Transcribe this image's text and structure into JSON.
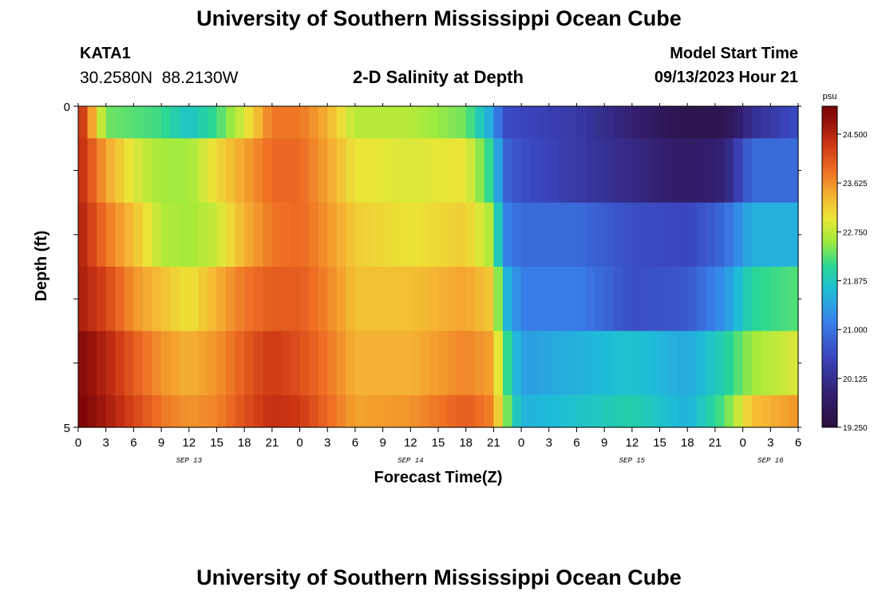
{
  "header": {
    "title": "University of Southern Mississippi Ocean Cube",
    "station_id": "KATA1",
    "station_coords": "30.2580N  88.2130W",
    "plot_title": "2-D Salinity at Depth",
    "model_start_label": "Model Start Time",
    "model_start_value": "09/13/2023 Hour 21"
  },
  "footer": {
    "title": "University of Southern Mississippi Ocean Cube"
  },
  "chart_data": {
    "type": "heatmap",
    "title": "2-D Salinity at Depth",
    "xlabel": "Forecast Time(Z)",
    "ylabel": "Depth (ft)",
    "x_tick_labels": [
      "0",
      "3",
      "6",
      "9",
      "12",
      "15",
      "18",
      "21",
      "0",
      "3",
      "6",
      "9",
      "12",
      "15",
      "18",
      "21",
      "0",
      "3",
      "6",
      "9",
      "12",
      "15",
      "18",
      "21",
      "0",
      "3",
      "6"
    ],
    "date_labels": [
      {
        "label": "SEP 13",
        "tick_index": 4
      },
      {
        "label": "SEP 14",
        "tick_index": 12
      },
      {
        "label": "SEP 15",
        "tick_index": 20
      },
      {
        "label": "SEP 16",
        "tick_index": 25
      }
    ],
    "x_range_hours": [
      0,
      78
    ],
    "y_tick_labels": [
      "0",
      "",
      "",
      "",
      "",
      "5"
    ],
    "y_range_ft": [
      0,
      5
    ],
    "colorbar": {
      "unit": "psu",
      "min": 19.25,
      "max": 25.0,
      "ticks": [
        "24.500",
        "23.625",
        "22.750",
        "21.875",
        "21.000",
        "20.125",
        "19.250"
      ],
      "tick_values": [
        24.5,
        23.625,
        22.75,
        21.875,
        21.0,
        20.125,
        19.25
      ]
    },
    "depth_rows": [
      {
        "depth_ft_range": [
          0,
          0.5
        ],
        "knots": [
          [
            0,
            24.6
          ],
          [
            3,
            22.4
          ],
          [
            9,
            22.2
          ],
          [
            12,
            21.8
          ],
          [
            15,
            22.2
          ],
          [
            18,
            22.9
          ],
          [
            21,
            23.8
          ],
          [
            24,
            23.8
          ],
          [
            27,
            23.4
          ],
          [
            30,
            22.7
          ],
          [
            36,
            22.7
          ],
          [
            42,
            22.4
          ],
          [
            45,
            21.4
          ],
          [
            46,
            20.6
          ],
          [
            48,
            20.5
          ],
          [
            54,
            20.3
          ],
          [
            66,
            19.4
          ],
          [
            70,
            19.5
          ],
          [
            73,
            20.1
          ],
          [
            78,
            20.6
          ]
        ]
      },
      {
        "depth_ft_range": [
          0.5,
          1.5
        ],
        "knots": [
          [
            0,
            24.5
          ],
          [
            3,
            23.5
          ],
          [
            6,
            22.9
          ],
          [
            9,
            22.6
          ],
          [
            12,
            22.6
          ],
          [
            15,
            23.1
          ],
          [
            18,
            23.5
          ],
          [
            21,
            23.9
          ],
          [
            24,
            23.9
          ],
          [
            27,
            23.5
          ],
          [
            30,
            23.0
          ],
          [
            36,
            22.9
          ],
          [
            42,
            23.0
          ],
          [
            45,
            22.0
          ],
          [
            46,
            20.9
          ],
          [
            48,
            20.6
          ],
          [
            54,
            20.3
          ],
          [
            60,
            20.0
          ],
          [
            66,
            19.7
          ],
          [
            70,
            19.9
          ],
          [
            73,
            20.9
          ],
          [
            78,
            20.9
          ]
        ]
      },
      {
        "depth_ft_range": [
          1.5,
          2.5
        ],
        "knots": [
          [
            0,
            24.6
          ],
          [
            3,
            23.8
          ],
          [
            6,
            23.3
          ],
          [
            9,
            22.7
          ],
          [
            12,
            22.6
          ],
          [
            15,
            22.8
          ],
          [
            18,
            23.4
          ],
          [
            21,
            23.8
          ],
          [
            24,
            23.9
          ],
          [
            27,
            23.6
          ],
          [
            30,
            23.2
          ],
          [
            36,
            23.0
          ],
          [
            42,
            23.2
          ],
          [
            45,
            22.6
          ],
          [
            46,
            21.2
          ],
          [
            48,
            20.9
          ],
          [
            54,
            20.9
          ],
          [
            60,
            20.6
          ],
          [
            66,
            20.5
          ],
          [
            70,
            20.9
          ],
          [
            73,
            21.6
          ],
          [
            78,
            21.6
          ]
        ]
      },
      {
        "depth_ft_range": [
          2.5,
          3.5
        ],
        "knots": [
          [
            0,
            24.6
          ],
          [
            3,
            24.2
          ],
          [
            6,
            23.6
          ],
          [
            9,
            23.3
          ],
          [
            12,
            23.0
          ],
          [
            15,
            23.4
          ],
          [
            18,
            23.8
          ],
          [
            21,
            24.0
          ],
          [
            24,
            24.0
          ],
          [
            27,
            23.7
          ],
          [
            30,
            23.3
          ],
          [
            36,
            23.3
          ],
          [
            42,
            23.5
          ],
          [
            45,
            23.2
          ],
          [
            46,
            21.8
          ],
          [
            48,
            21.1
          ],
          [
            54,
            21.1
          ],
          [
            60,
            20.6
          ],
          [
            66,
            20.7
          ],
          [
            70,
            21.3
          ],
          [
            73,
            22.1
          ],
          [
            78,
            22.3
          ]
        ]
      },
      {
        "depth_ft_range": [
          3.5,
          4.5
        ],
        "knots": [
          [
            0,
            24.9
          ],
          [
            3,
            24.5
          ],
          [
            6,
            24.0
          ],
          [
            9,
            23.6
          ],
          [
            12,
            23.4
          ],
          [
            15,
            23.6
          ],
          [
            18,
            24.0
          ],
          [
            21,
            24.3
          ],
          [
            24,
            24.1
          ],
          [
            27,
            23.8
          ],
          [
            30,
            23.4
          ],
          [
            36,
            23.4
          ],
          [
            42,
            23.7
          ],
          [
            45,
            23.5
          ],
          [
            46,
            22.4
          ],
          [
            48,
            21.4
          ],
          [
            54,
            21.6
          ],
          [
            60,
            21.8
          ],
          [
            66,
            21.5
          ],
          [
            70,
            22.0
          ],
          [
            73,
            22.6
          ],
          [
            78,
            22.9
          ]
        ]
      },
      {
        "depth_ft_range": [
          4.5,
          5
        ],
        "knots": [
          [
            0,
            25.0
          ],
          [
            3,
            24.6
          ],
          [
            6,
            24.2
          ],
          [
            9,
            23.8
          ],
          [
            12,
            23.6
          ],
          [
            15,
            23.7
          ],
          [
            18,
            24.1
          ],
          [
            21,
            24.4
          ],
          [
            24,
            24.3
          ],
          [
            27,
            23.9
          ],
          [
            30,
            23.5
          ],
          [
            36,
            23.6
          ],
          [
            42,
            24.0
          ],
          [
            45,
            23.7
          ],
          [
            46,
            22.7
          ],
          [
            48,
            21.6
          ],
          [
            54,
            21.8
          ],
          [
            60,
            22.0
          ],
          [
            66,
            21.6
          ],
          [
            70,
            22.3
          ],
          [
            73,
            23.3
          ],
          [
            78,
            23.6
          ]
        ]
      }
    ]
  }
}
